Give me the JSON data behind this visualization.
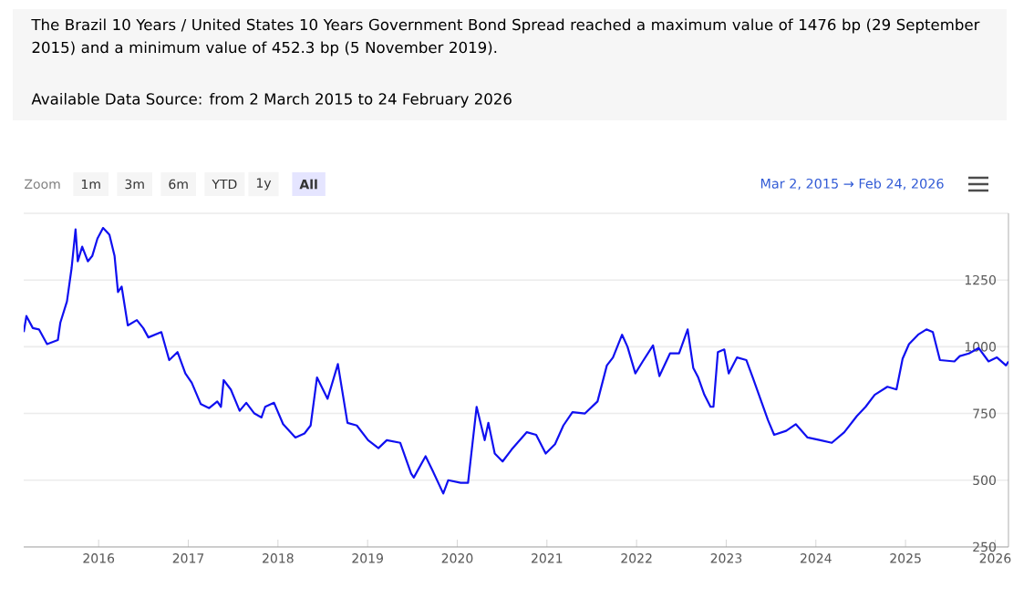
{
  "chart_data": {
    "type": "line",
    "title": "The Brazil 10 Years / United States 10 Years Government Bond Spread reached a maximum value of 1476 bp (29 September 2015) and a minimum value of 452.3 bp (5 November 2019).",
    "subtitle": "Available Data Source: from 2 March 2015 to 24 February 2026",
    "annotations": [
      "Zoom",
      "1m",
      "3m",
      "6m",
      "YTD",
      "1y",
      "All",
      "Mar 2, 2015 → Feb 24, 2026"
    ],
    "color": "#1010f0",
    "x": [
      "2015-03-02",
      "2015-03-13",
      "2015-04-08",
      "2015-05-03",
      "2015-06-05",
      "2015-07-19",
      "2015-07-29",
      "2015-08-25",
      "2015-09-13",
      "2015-09-29",
      "2015-10-08",
      "2015-10-26",
      "2015-11-18",
      "2015-12-06",
      "2015-12-27",
      "2016-01-19",
      "2016-02-14",
      "2016-03-06",
      "2016-03-20",
      "2016-04-04",
      "2016-04-29",
      "2016-06-05",
      "2016-07-01",
      "2016-07-22",
      "2016-09-13",
      "2016-10-15",
      "2016-11-18",
      "2016-12-20",
      "2017-01-15",
      "2017-02-21",
      "2017-03-27",
      "2017-04-29",
      "2017-05-14",
      "2017-05-25",
      "2017-06-23",
      "2017-07-29",
      "2017-08-25",
      "2017-09-27",
      "2017-10-26",
      "2017-11-10",
      "2017-12-16",
      "2018-01-22",
      "2018-03-13",
      "2018-04-19",
      "2018-05-14",
      "2018-06-09",
      "2018-07-22",
      "2018-09-02",
      "2018-10-11",
      "2018-11-18",
      "2019-01-03",
      "2019-02-14",
      "2019-03-20",
      "2019-05-14",
      "2019-06-27",
      "2019-07-08",
      "2019-08-25",
      "2019-09-23",
      "2019-11-05",
      "2019-11-25",
      "2020-01-15",
      "2020-02-14",
      "2020-03-20",
      "2020-04-22",
      "2020-05-07",
      "2020-06-02",
      "2020-07-04",
      "2020-08-10",
      "2020-10-11",
      "2020-11-18",
      "2020-12-27",
      "2021-02-03",
      "2021-03-09",
      "2021-04-15",
      "2021-06-05",
      "2021-07-26",
      "2021-09-02",
      "2021-09-27",
      "2021-11-03",
      "2021-11-25",
      "2021-12-27",
      "2022-01-26",
      "2022-03-09",
      "2022-04-04",
      "2022-05-17",
      "2022-06-23",
      "2022-07-28",
      "2022-08-20",
      "2022-09-09",
      "2022-10-04",
      "2022-10-29",
      "2022-11-10",
      "2022-11-28",
      "2022-12-24",
      "2023-01-11",
      "2023-02-14",
      "2023-03-24",
      "2023-04-19",
      "2023-06-20",
      "2023-07-15",
      "2023-09-02",
      "2023-10-11",
      "2023-11-28",
      "2024-01-19",
      "2024-03-06",
      "2024-04-26",
      "2024-06-16",
      "2024-07-22",
      "2024-08-28",
      "2024-10-19",
      "2024-11-25",
      "2024-12-20",
      "2025-01-15",
      "2025-02-21",
      "2025-03-27",
      "2025-04-22",
      "2025-05-21",
      "2025-07-19",
      "2025-08-10",
      "2025-09-16",
      "2025-10-26",
      "2025-12-05",
      "2026-01-08",
      "2026-02-14",
      "2026-02-24"
    ],
    "values": [
      1055,
      1115,
      1070,
      1065,
      1010,
      1025,
      1090,
      1170,
      1295,
      1440,
      1320,
      1375,
      1320,
      1340,
      1405,
      1445,
      1420,
      1340,
      1205,
      1225,
      1080,
      1100,
      1070,
      1035,
      1055,
      950,
      980,
      900,
      865,
      785,
      770,
      795,
      775,
      875,
      840,
      760,
      790,
      750,
      735,
      775,
      790,
      710,
      660,
      675,
      705,
      885,
      805,
      935,
      715,
      705,
      650,
      620,
      650,
      640,
      525,
      510,
      590,
      535,
      450,
      500,
      490,
      490,
      775,
      650,
      715,
      600,
      570,
      615,
      680,
      670,
      600,
      635,
      705,
      755,
      750,
      795,
      930,
      960,
      1045,
      1000,
      900,
      945,
      1005,
      890,
      975,
      975,
      1065,
      920,
      885,
      820,
      775,
      775,
      980,
      990,
      900,
      960,
      950,
      885,
      725,
      670,
      685,
      710,
      660,
      650,
      640,
      680,
      740,
      775,
      820,
      850,
      840,
      955,
      1010,
      1045,
      1065,
      1055,
      950,
      945,
      965,
      975,
      995,
      945,
      960,
      930,
      945
    ],
    "xlim": [
      "2015-03-02",
      "2026-02-24"
    ],
    "xticks": [
      "2016",
      "2017",
      "2018",
      "2019",
      "2020",
      "2021",
      "2022",
      "2023",
      "2024",
      "2025",
      "2026"
    ],
    "ylim": [
      250,
      1500
    ],
    "yticks": [
      250,
      500,
      750,
      1000,
      1250,
      {
        "value": 1500,
        "label": null
      }
    ],
    "grid": "y"
  }
}
